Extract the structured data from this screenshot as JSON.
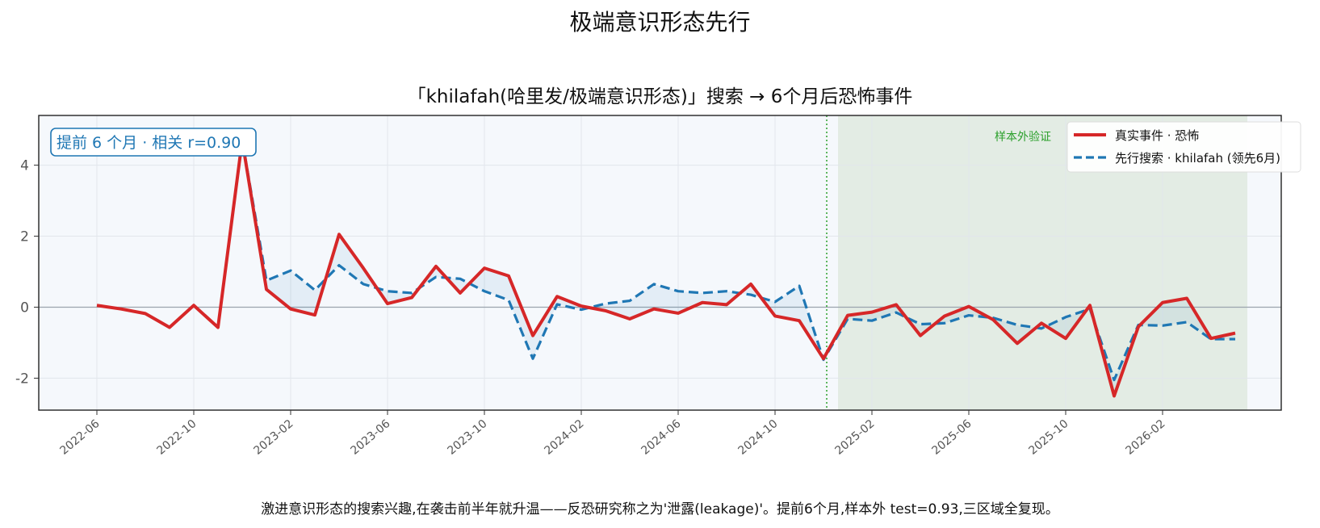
{
  "title": "极端意识形态先行",
  "subtitle": "「khilafah(哈里发/极端意识形态)」搜索 → 6个月后恐怖事件",
  "footer": "激进意识形态的搜索兴趣,在袭击前半年就升温——反恐研究称之为'泄露(leakage)'。提前6个月,样本外 test=0.93,三区域全复现。",
  "annotation": "提前 6 个月 · 相关 r=0.90",
  "oos_label": "样本外验证",
  "colors": {
    "actual": "#d62728",
    "lead": "#1f77b4",
    "oos": "#2ca02c",
    "plot_bg": "#f5f8fc",
    "oos_bg": "#dfeadf"
  },
  "chart_data": {
    "type": "line",
    "x": [
      "2022-06",
      "2022-07",
      "2022-08",
      "2022-09",
      "2022-10",
      "2022-11",
      "2022-12",
      "2023-01",
      "2023-02",
      "2023-03",
      "2023-04",
      "2023-05",
      "2023-06",
      "2023-07",
      "2023-08",
      "2023-09",
      "2023-10",
      "2023-11",
      "2023-12",
      "2024-01",
      "2024-02",
      "2024-03",
      "2024-04",
      "2024-05",
      "2024-06",
      "2024-07",
      "2024-08",
      "2024-09",
      "2024-10",
      "2024-11",
      "2024-12",
      "2025-01",
      "2025-02",
      "2025-03",
      "2025-04",
      "2025-05",
      "2025-06",
      "2025-07",
      "2025-08",
      "2025-09",
      "2025-10",
      "2025-11",
      "2025-12",
      "2026-01",
      "2026-02",
      "2026-03",
      "2026-04",
      "2026-05"
    ],
    "x_ticks": [
      "2022-06",
      "2022-10",
      "2023-02",
      "2023-06",
      "2023-10",
      "2024-02",
      "2024-06",
      "2024-10",
      "2025-02",
      "2025-06",
      "2025-10",
      "2026-02"
    ],
    "series": [
      {
        "name": "真实事件 · 恐怖",
        "style": "solid",
        "values": [
          0.05,
          -0.05,
          -0.18,
          -0.57,
          0.05,
          -0.57,
          4.7,
          0.5,
          -0.05,
          -0.22,
          2.05,
          1.1,
          0.1,
          0.27,
          1.15,
          0.4,
          1.1,
          0.88,
          -0.8,
          0.3,
          0.03,
          -0.1,
          -0.33,
          -0.05,
          -0.17,
          0.13,
          0.07,
          0.65,
          -0.25,
          -0.38,
          -1.45,
          -0.23,
          -0.14,
          0.07,
          -0.8,
          -0.25,
          0.02,
          -0.35,
          -1.02,
          -0.45,
          -0.88,
          0.05,
          -2.5,
          -0.55,
          0.13,
          0.25,
          -0.88,
          -0.73
        ]
      },
      {
        "name": "先行搜索 · khilafah (领先6月)",
        "style": "dashed",
        "values": [
          null,
          null,
          null,
          null,
          null,
          null,
          4.7,
          0.75,
          1.03,
          0.48,
          1.18,
          0.65,
          0.45,
          0.4,
          0.85,
          0.8,
          0.45,
          0.2,
          -1.45,
          0.08,
          -0.07,
          0.1,
          0.18,
          0.65,
          0.45,
          0.4,
          0.45,
          0.35,
          0.15,
          0.6,
          -1.48,
          -0.33,
          -0.38,
          -0.15,
          -0.48,
          -0.45,
          -0.23,
          -0.3,
          -0.5,
          -0.6,
          -0.28,
          -0.05,
          -2.05,
          -0.5,
          -0.52,
          -0.42,
          -0.9,
          -0.9
        ]
      }
    ],
    "oos_start": "2025-01",
    "oos_end": "2026-05",
    "ylim": [
      -2.9,
      5.4
    ],
    "yticks": [
      -2,
      0,
      2,
      4
    ],
    "grid": true,
    "legend": "top-right"
  }
}
